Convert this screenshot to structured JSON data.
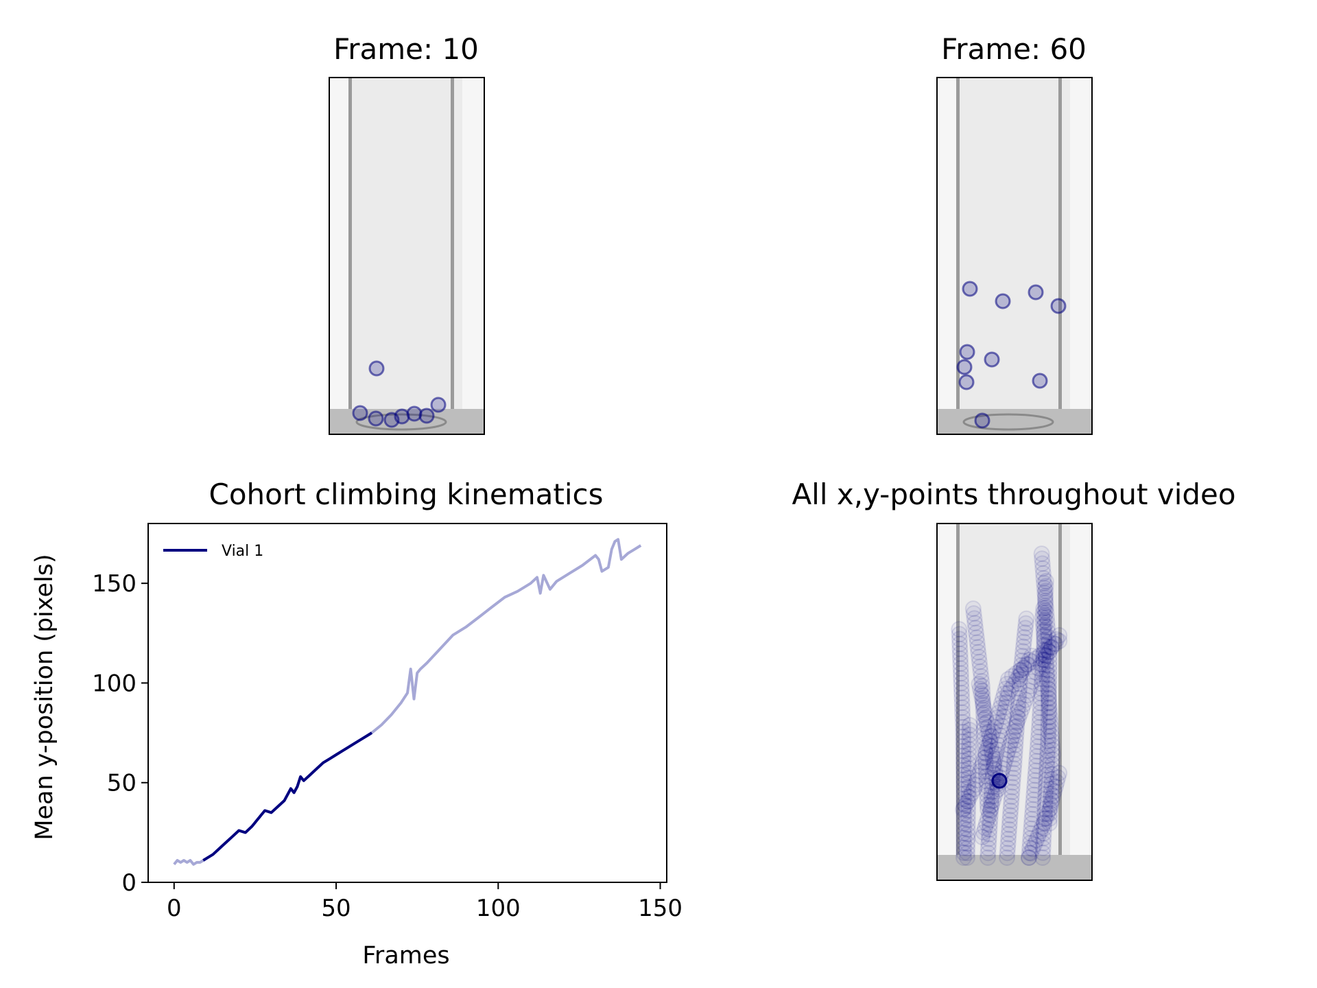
{
  "panels": {
    "frame_a": {
      "title": "Frame: 10"
    },
    "frame_b": {
      "title": "Frame: 60"
    },
    "scatter": {
      "title": "All x,y-points throughout video"
    }
  },
  "colors": {
    "series": "#000080",
    "series_faded": "#a6a8d6",
    "vial_bg": "#ebebeb",
    "vial_wall": "#9a9a9a",
    "vial_floor": "#bdbdbd"
  },
  "chart_data": {
    "type": "line",
    "title": "Cohort climbing kinematics",
    "xlabel": "Frames",
    "ylabel": "Mean y-position (pixels)",
    "xlim": [
      -8,
      152
    ],
    "ylim": [
      0,
      180
    ],
    "xticks": [
      "0",
      "50",
      "100",
      "150"
    ],
    "yticks": [
      "0",
      "50",
      "100",
      "150"
    ],
    "grid": false,
    "legend_position": "upper-left",
    "highlight_range": [
      9,
      61
    ],
    "series": [
      {
        "name": "Vial 1",
        "x": [
          0,
          1,
          2,
          3,
          4,
          5,
          6,
          7,
          8,
          9,
          10,
          12,
          14,
          16,
          18,
          20,
          22,
          24,
          26,
          28,
          30,
          32,
          34,
          36,
          37,
          38,
          39,
          40,
          42,
          44,
          46,
          48,
          50,
          52,
          54,
          56,
          58,
          60,
          61,
          64,
          67,
          70,
          72,
          73,
          74,
          75,
          76,
          78,
          82,
          86,
          90,
          94,
          98,
          102,
          106,
          110,
          112,
          113,
          114,
          116,
          118,
          122,
          126,
          130,
          131,
          132,
          134,
          135,
          136,
          137,
          138,
          140,
          142,
          144
        ],
        "y": [
          9,
          11,
          10,
          11,
          10,
          11,
          9,
          10,
          10,
          11,
          12,
          14,
          17,
          20,
          23,
          26,
          25,
          28,
          32,
          36,
          35,
          38,
          41,
          47,
          45,
          48,
          53,
          51,
          54,
          57,
          60,
          62,
          64,
          66,
          68,
          70,
          72,
          74,
          75,
          79,
          84,
          90,
          95,
          107,
          92,
          105,
          107,
          110,
          117,
          124,
          128,
          133,
          138,
          143,
          146,
          150,
          153,
          145,
          154,
          147,
          151,
          155,
          159,
          164,
          162,
          156,
          158,
          167,
          171,
          172,
          162,
          165,
          167,
          169
        ]
      }
    ]
  }
}
